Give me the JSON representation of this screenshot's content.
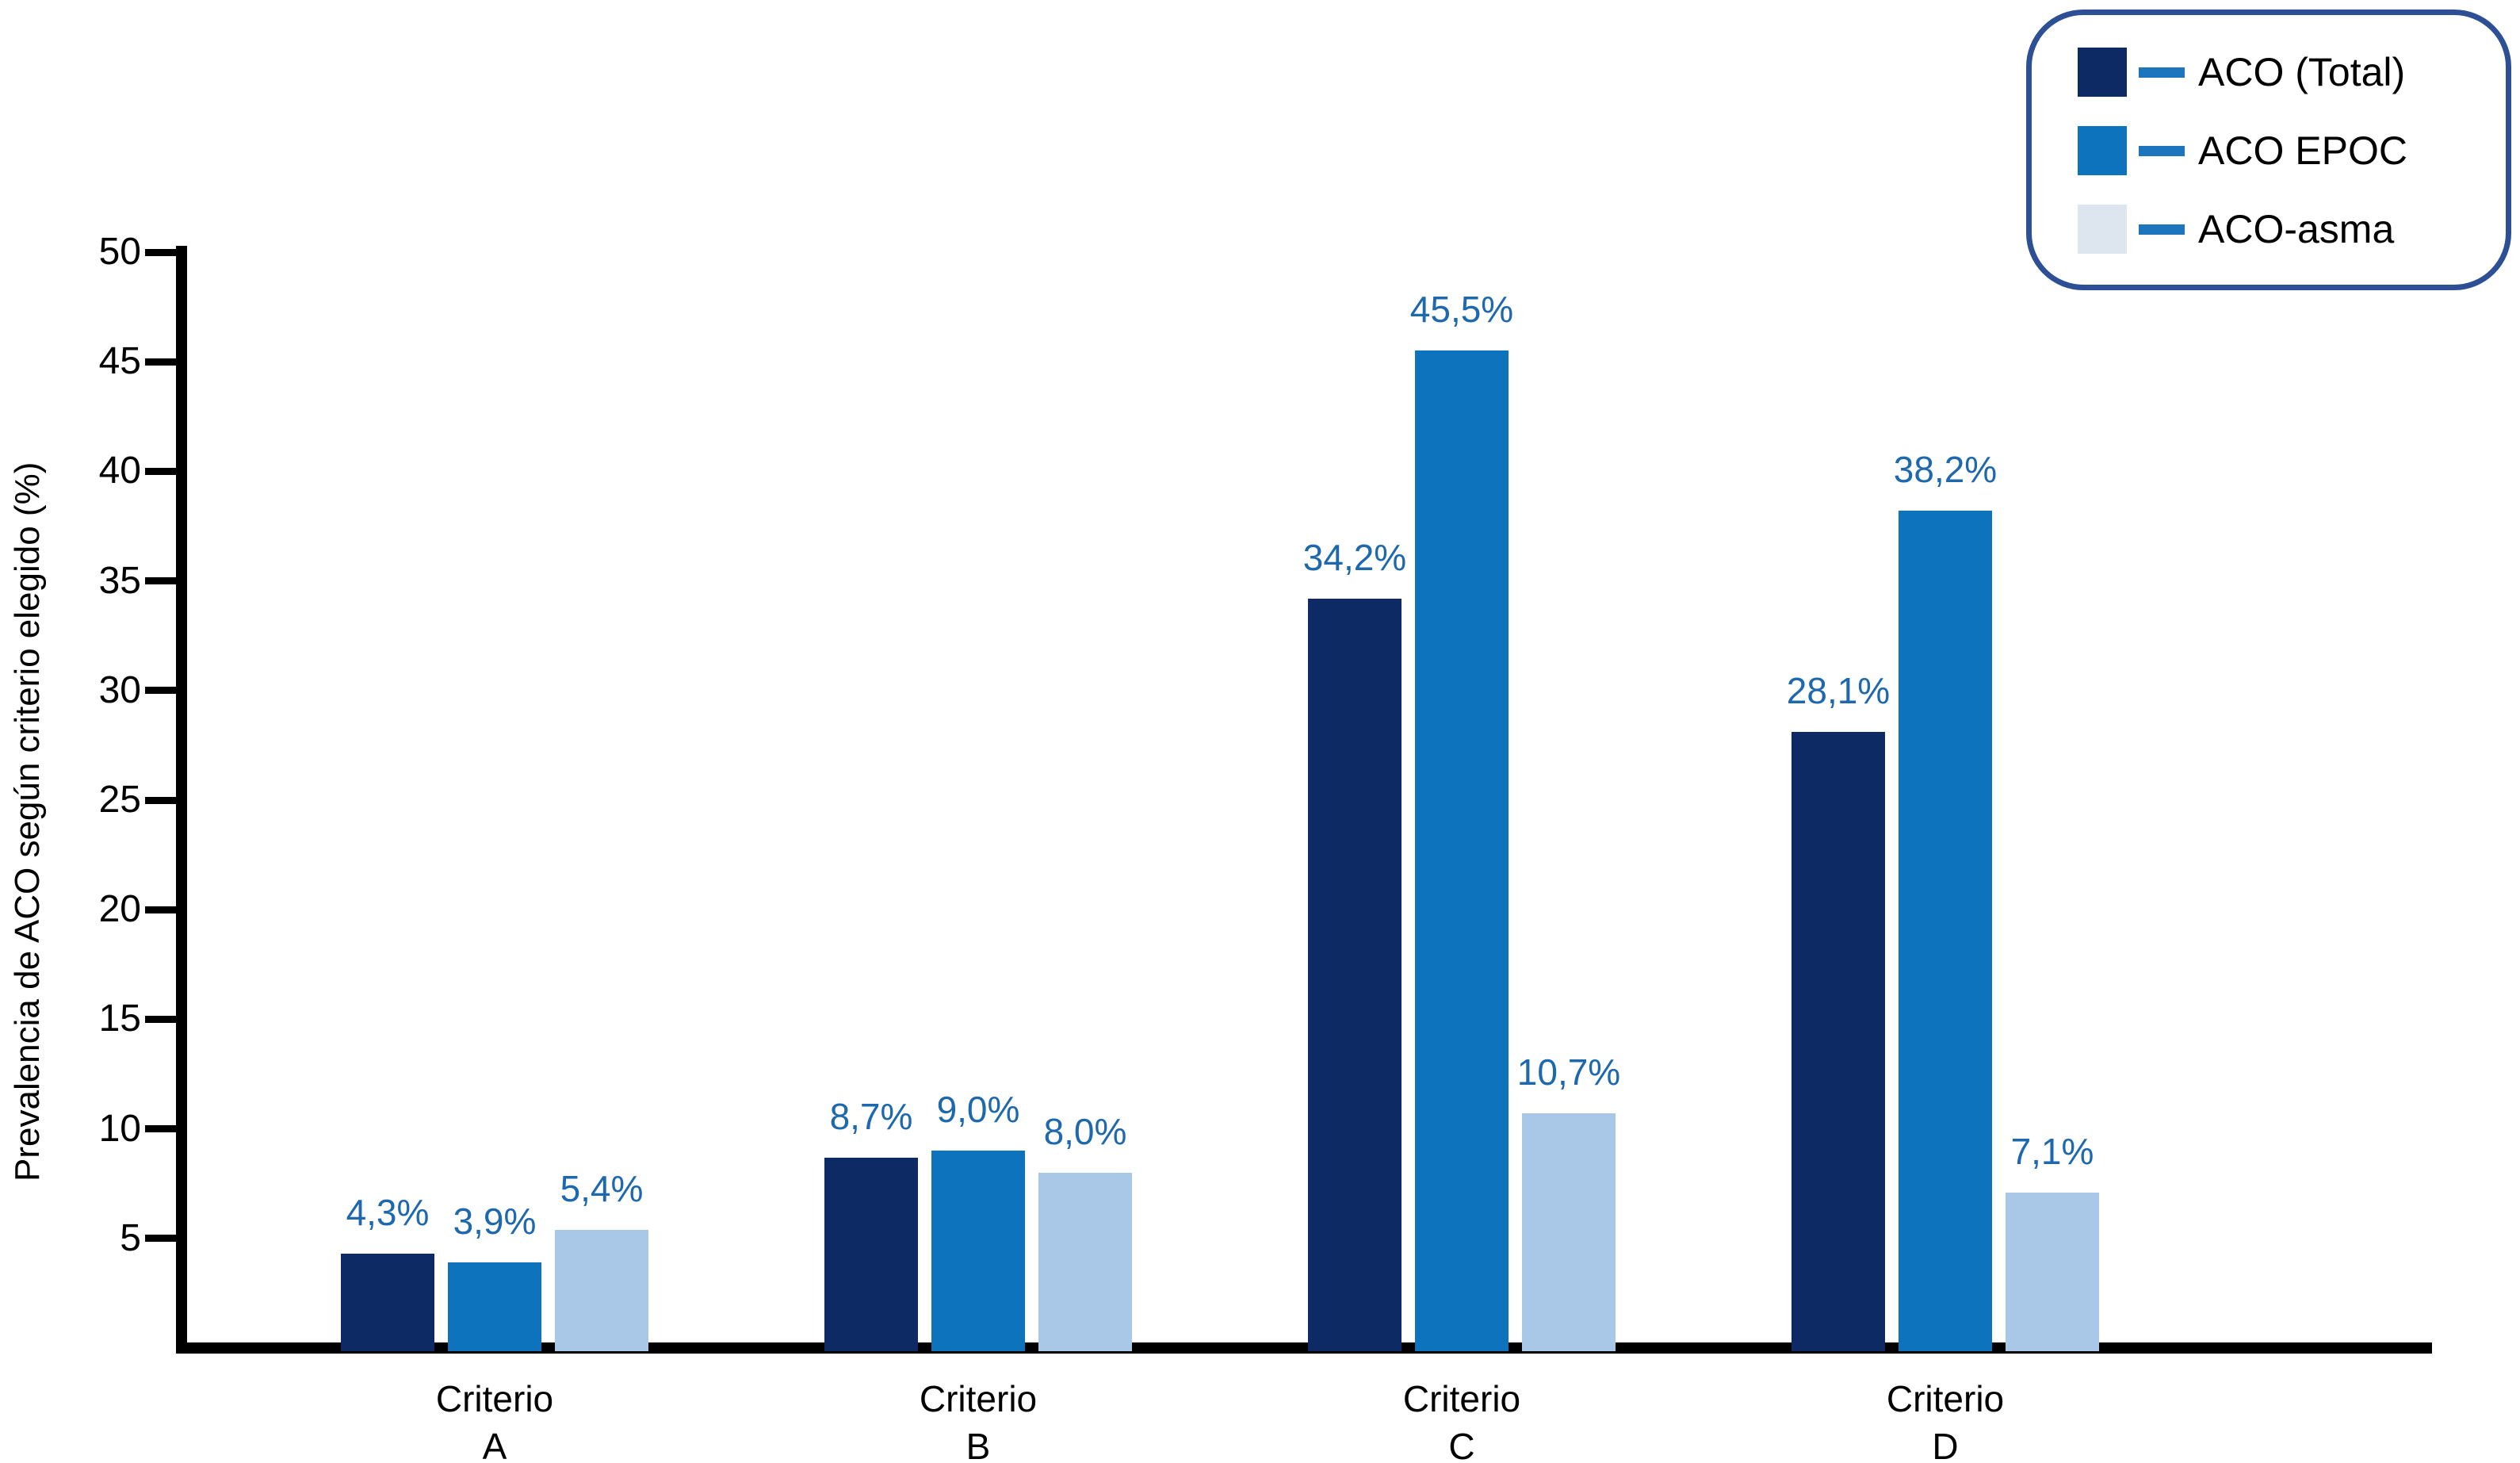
{
  "figure": {
    "background": "#ffffff"
  },
  "legend": {
    "border_color": "#2d4f96",
    "dash_color": "#1d76bd",
    "items": [
      {
        "label": "ACO (Total)",
        "swatch": "#0e2a64"
      },
      {
        "label": "ACO EPOC",
        "swatch": "#0d73bc"
      },
      {
        "label": "ACO-asma",
        "swatch": "#dde6ef"
      }
    ]
  },
  "chart_data": {
    "type": "bar",
    "title": "",
    "xlabel": "",
    "ylabel": "Prevalencia de ACO según criterio elegido (%)",
    "ylim": [
      0,
      50
    ],
    "y_ticks": [
      5,
      10,
      15,
      20,
      25,
      30,
      35,
      40,
      45,
      50
    ],
    "grid": false,
    "legend_position": "top-right",
    "axis_color": "#000000",
    "value_label_color": "#1e68ae",
    "categories": [
      {
        "line1": "Criterio",
        "line2": "A"
      },
      {
        "line1": "Criterio",
        "line2": "B"
      },
      {
        "line1": "Criterio",
        "line2": "C"
      },
      {
        "line1": "Criterio",
        "line2": "D"
      }
    ],
    "series": [
      {
        "name": "ACO (Total)",
        "color": "#0e2a64",
        "values": [
          4.3,
          8.7,
          34.2,
          28.1
        ],
        "value_labels": [
          "4,3%",
          "8,7%",
          "34,2%",
          "28,1%"
        ]
      },
      {
        "name": "ACO EPOC",
        "color": "#0d73bc",
        "values": [
          3.9,
          9.0,
          45.5,
          38.2
        ],
        "value_labels": [
          "3,9%",
          "9,0%",
          "45,5%",
          "38,2%"
        ]
      },
      {
        "name": "ACO-asma",
        "color": "#a9c7e6",
        "values": [
          5.4,
          8.0,
          10.7,
          7.1
        ],
        "value_labels": [
          "5,4%",
          "8,0%",
          "10,7%",
          "7,1%"
        ]
      }
    ]
  }
}
